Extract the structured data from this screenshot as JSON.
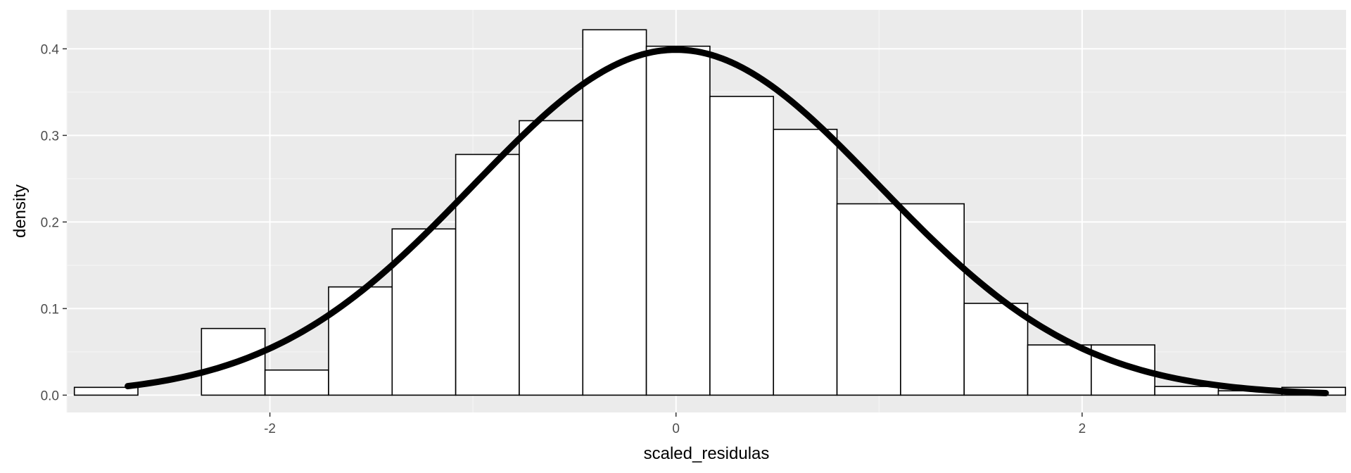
{
  "chart_data": {
    "type": "bar",
    "subtype": "histogram-with-density-curve",
    "title": "",
    "xlabel": "scaled_residulas",
    "ylabel": "density",
    "xlim": [
      -3.0,
      3.3
    ],
    "ylim": [
      -0.02,
      0.445
    ],
    "grid": true,
    "legend": "none",
    "x_ticks": [
      {
        "value": -2,
        "label": "-2"
      },
      {
        "value": 0,
        "label": "0"
      },
      {
        "value": 2,
        "label": "2"
      }
    ],
    "y_ticks": [
      {
        "value": 0.0,
        "label": "0.0"
      },
      {
        "value": 0.1,
        "label": "0.1"
      },
      {
        "value": 0.2,
        "label": "0.2"
      },
      {
        "value": 0.3,
        "label": "0.3"
      },
      {
        "value": 0.4,
        "label": "0.4"
      }
    ],
    "bins": [
      {
        "x0": -2.963,
        "x1": -2.65,
        "density": 0.009
      },
      {
        "x0": -2.65,
        "x1": -2.337,
        "density": 0.0
      },
      {
        "x0": -2.337,
        "x1": -2.024,
        "density": 0.077
      },
      {
        "x0": -2.024,
        "x1": -1.711,
        "density": 0.029
      },
      {
        "x0": -1.711,
        "x1": -1.398,
        "density": 0.125
      },
      {
        "x0": -1.398,
        "x1": -1.085,
        "density": 0.192
      },
      {
        "x0": -1.085,
        "x1": -0.772,
        "density": 0.278
      },
      {
        "x0": -0.772,
        "x1": -0.459,
        "density": 0.317
      },
      {
        "x0": -0.459,
        "x1": -0.146,
        "density": 0.422
      },
      {
        "x0": -0.146,
        "x1": 0.167,
        "density": 0.403
      },
      {
        "x0": 0.167,
        "x1": 0.48,
        "density": 0.345
      },
      {
        "x0": 0.48,
        "x1": 0.793,
        "density": 0.307
      },
      {
        "x0": 0.793,
        "x1": 1.106,
        "density": 0.221
      },
      {
        "x0": 1.106,
        "x1": 1.419,
        "density": 0.221
      },
      {
        "x0": 1.419,
        "x1": 1.732,
        "density": 0.106
      },
      {
        "x0": 1.732,
        "x1": 2.045,
        "density": 0.058
      },
      {
        "x0": 2.045,
        "x1": 2.358,
        "density": 0.058
      },
      {
        "x0": 2.358,
        "x1": 2.671,
        "density": 0.01
      },
      {
        "x0": 2.671,
        "x1": 2.984,
        "density": 0.005
      },
      {
        "x0": 2.984,
        "x1": 3.297,
        "density": 0.009
      }
    ],
    "curve": {
      "type": "normal-density",
      "mean": 0,
      "sd": 1,
      "x_range": [
        -2.7,
        3.2
      ]
    },
    "colors": {
      "panel_background": "#ebebeb",
      "grid_major": "#ffffff",
      "grid_minor": "#f5f5f5",
      "bar_fill": "#ffffff",
      "bar_stroke": "#000000",
      "curve": "#000000",
      "tick_label": "#4d4d4d",
      "axis_title": "#000000"
    }
  }
}
